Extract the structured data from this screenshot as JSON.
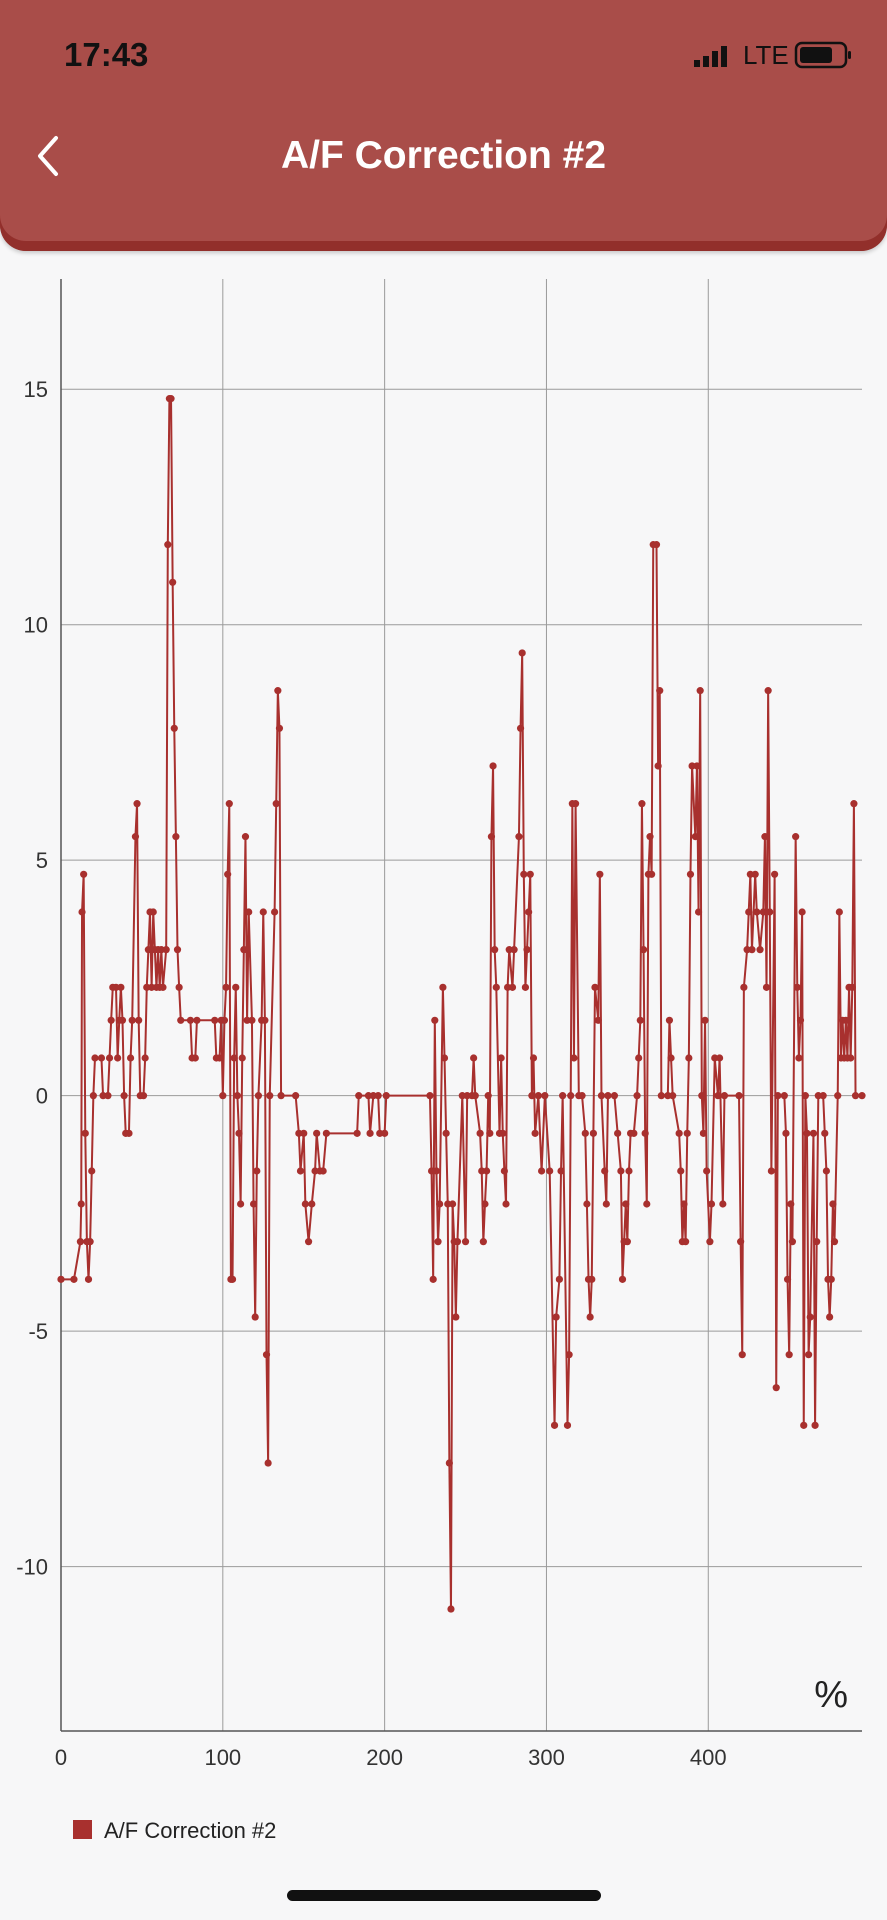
{
  "status_bar": {
    "time": "17:43",
    "network": "LTE"
  },
  "header": {
    "title": "A/F Correction #2"
  },
  "chart_data": {
    "type": "line",
    "unit_label": "%",
    "color": "#a8302e",
    "grid": true,
    "legend": "bottom-left",
    "xlim": [
      0,
      495
    ],
    "xticks": [
      0,
      100,
      200,
      300,
      400
    ],
    "ylim": [
      -13.49,
      17.34
    ],
    "yticks": [
      -10,
      -5,
      0,
      5,
      10,
      15
    ],
    "series": [
      {
        "name": "A/F Correction #2",
        "color": "#a8302e",
        "x": [
          0,
          8,
          12,
          12.5,
          13,
          14,
          15,
          16,
          17,
          18,
          19,
          20,
          21,
          25,
          26,
          29,
          30,
          31,
          32,
          34,
          35,
          36,
          37,
          38,
          39,
          40,
          42,
          43,
          44,
          46,
          47,
          48,
          49,
          51,
          52,
          53,
          54,
          55,
          56,
          57,
          58,
          59,
          60,
          61,
          62,
          63,
          65,
          66,
          67,
          68,
          69,
          70,
          71,
          72,
          73,
          74,
          80,
          81,
          83,
          84,
          95,
          96,
          98,
          99,
          100,
          101,
          102,
          103,
          104,
          105,
          106,
          107,
          108,
          109,
          110,
          111,
          112,
          113,
          114,
          115,
          116,
          118,
          119,
          120,
          121,
          122,
          124,
          125,
          126,
          127,
          128,
          129,
          132,
          133,
          134,
          135,
          136,
          145,
          147,
          148,
          150,
          151,
          153,
          155,
          157,
          158,
          160,
          162,
          164,
          183,
          184,
          190,
          191,
          193,
          196,
          197,
          200,
          201,
          228,
          229,
          230,
          231,
          232,
          233,
          234,
          236,
          237,
          238,
          239,
          240,
          241,
          242,
          243,
          244,
          245,
          248,
          250,
          251,
          254,
          255,
          256,
          259,
          260,
          261,
          262,
          263,
          264,
          265,
          266,
          267,
          268,
          269,
          271,
          272,
          273,
          274,
          275,
          276,
          277,
          279,
          280,
          283,
          284,
          285,
          286,
          287,
          288,
          289,
          290,
          291,
          292,
          293,
          295,
          297,
          299,
          302,
          305,
          306,
          308,
          309,
          310,
          313,
          314,
          315,
          316,
          317,
          318,
          320,
          322,
          324,
          325,
          326,
          327,
          328,
          329,
          330,
          332,
          333,
          334,
          336,
          337,
          338,
          342,
          344,
          346,
          347,
          348,
          349,
          350,
          351,
          352,
          354,
          356,
          357,
          358,
          359,
          360,
          361,
          362,
          363,
          364,
          365,
          366,
          368,
          369,
          370,
          371,
          375,
          376,
          377,
          378,
          382,
          383,
          384,
          385,
          386,
          387,
          388,
          389,
          390,
          392,
          393,
          394,
          395,
          396,
          397,
          398,
          399,
          401,
          402,
          404,
          406,
          407,
          409,
          410,
          419,
          420,
          421,
          422,
          424,
          425,
          426,
          427,
          429,
          430,
          432,
          434,
          435,
          436,
          437,
          438,
          439,
          441,
          442,
          443,
          447,
          448,
          449,
          450,
          451,
          452,
          454,
          455,
          456,
          457,
          458,
          459,
          460,
          461,
          462,
          463,
          465,
          466,
          467,
          468,
          471,
          472,
          473,
          474,
          475,
          476,
          477,
          478,
          480,
          481,
          482,
          483,
          484,
          485,
          486,
          487,
          488,
          489,
          490,
          491,
          495
        ],
        "values": [
          -3.9,
          -3.9,
          -3.1,
          -2.3,
          3.9,
          4.7,
          -0.8,
          -3.1,
          -3.9,
          -3.1,
          -1.6,
          0,
          0.8,
          0.8,
          0,
          0,
          0.8,
          1.6,
          2.3,
          2.3,
          0.8,
          1.6,
          2.3,
          1.6,
          0,
          -0.8,
          -0.8,
          0.8,
          1.6,
          5.5,
          6.2,
          1.6,
          0,
          0,
          0.8,
          2.3,
          3.1,
          3.9,
          2.3,
          3.9,
          3.1,
          2.3,
          3.1,
          2.3,
          3.1,
          2.3,
          3.1,
          11.7,
          14.8,
          14.8,
          10.9,
          7.8,
          5.5,
          3.1,
          2.3,
          1.6,
          1.6,
          0.8,
          0.8,
          1.6,
          1.6,
          0.8,
          0.8,
          1.6,
          0,
          1.6,
          2.3,
          4.7,
          6.2,
          -3.9,
          -3.9,
          0.8,
          2.3,
          0,
          -0.8,
          -2.3,
          0.8,
          3.1,
          5.5,
          1.6,
          3.9,
          1.6,
          -2.3,
          -4.7,
          -1.6,
          0,
          1.6,
          3.9,
          1.6,
          -5.5,
          -7.8,
          0,
          3.9,
          6.2,
          8.6,
          7.8,
          0,
          0,
          -0.8,
          -1.6,
          -0.8,
          -2.3,
          -3.1,
          -2.3,
          -1.6,
          -0.8,
          -1.6,
          -1.6,
          -0.8,
          -0.8,
          0,
          0,
          -0.8,
          0,
          0,
          -0.8,
          -0.8,
          0,
          0,
          -1.6,
          -3.9,
          1.6,
          -1.6,
          -3.1,
          -2.3,
          2.3,
          0.8,
          -0.8,
          -2.3,
          -7.8,
          -10.9,
          -2.3,
          -3.1,
          -4.7,
          -3.1,
          0,
          -3.1,
          0,
          0,
          0.8,
          0,
          -0.8,
          -1.6,
          -3.1,
          -2.3,
          -1.6,
          0,
          -0.8,
          5.5,
          7.0,
          3.1,
          2.3,
          -0.8,
          0.8,
          -0.8,
          -1.6,
          -2.3,
          2.3,
          3.1,
          2.3,
          3.1,
          5.5,
          7.8,
          9.4,
          4.7,
          2.3,
          3.1,
          3.9,
          4.7,
          0,
          0.8,
          -0.8,
          0,
          -1.6,
          0,
          -1.6,
          -7.0,
          -4.7,
          -3.9,
          -1.6,
          0,
          -7.0,
          -5.5,
          0,
          6.2,
          0.8,
          6.2,
          0,
          0,
          -0.8,
          -2.3,
          -3.9,
          -4.7,
          -3.9,
          -0.8,
          2.3,
          1.6,
          4.7,
          0,
          -1.6,
          -2.3,
          0,
          0,
          -0.8,
          -1.6,
          -3.9,
          -3.1,
          -2.3,
          -3.1,
          -1.6,
          -0.8,
          -0.8,
          0,
          0.8,
          1.6,
          6.2,
          3.1,
          -0.8,
          -2.3,
          4.7,
          5.5,
          4.7,
          11.7,
          11.7,
          7.0,
          8.6,
          0,
          0,
          1.6,
          0.8,
          0,
          -0.8,
          -1.6,
          -3.1,
          -2.3,
          -3.1,
          -0.8,
          0.8,
          4.7,
          7.0,
          5.5,
          7.0,
          3.9,
          8.6,
          0,
          -0.8,
          1.6,
          -1.6,
          -3.1,
          -2.3,
          0.8,
          0,
          0.8,
          -2.3,
          0,
          0,
          -3.1,
          -5.5,
          2.3,
          3.1,
          3.9,
          4.7,
          3.1,
          4.7,
          3.9,
          3.1,
          3.9,
          5.5,
          2.3,
          8.6,
          3.9,
          -1.6,
          4.7,
          -6.2,
          0,
          0,
          -0.8,
          -3.9,
          -5.5,
          -2.3,
          -3.1,
          5.5,
          2.3,
          0.8,
          1.6,
          3.9,
          -7.0,
          0,
          -0.8,
          -5.5,
          -4.7,
          -0.8,
          -7.0,
          -3.1,
          0,
          0,
          -0.8,
          -1.6,
          -3.9,
          -4.7,
          -3.9,
          -2.3,
          -3.1,
          0,
          3.9,
          0.8,
          1.6,
          0.8,
          1.6,
          0.8,
          2.3,
          0.8,
          2.3,
          6.2,
          0,
          0
        ]
      }
    ]
  }
}
